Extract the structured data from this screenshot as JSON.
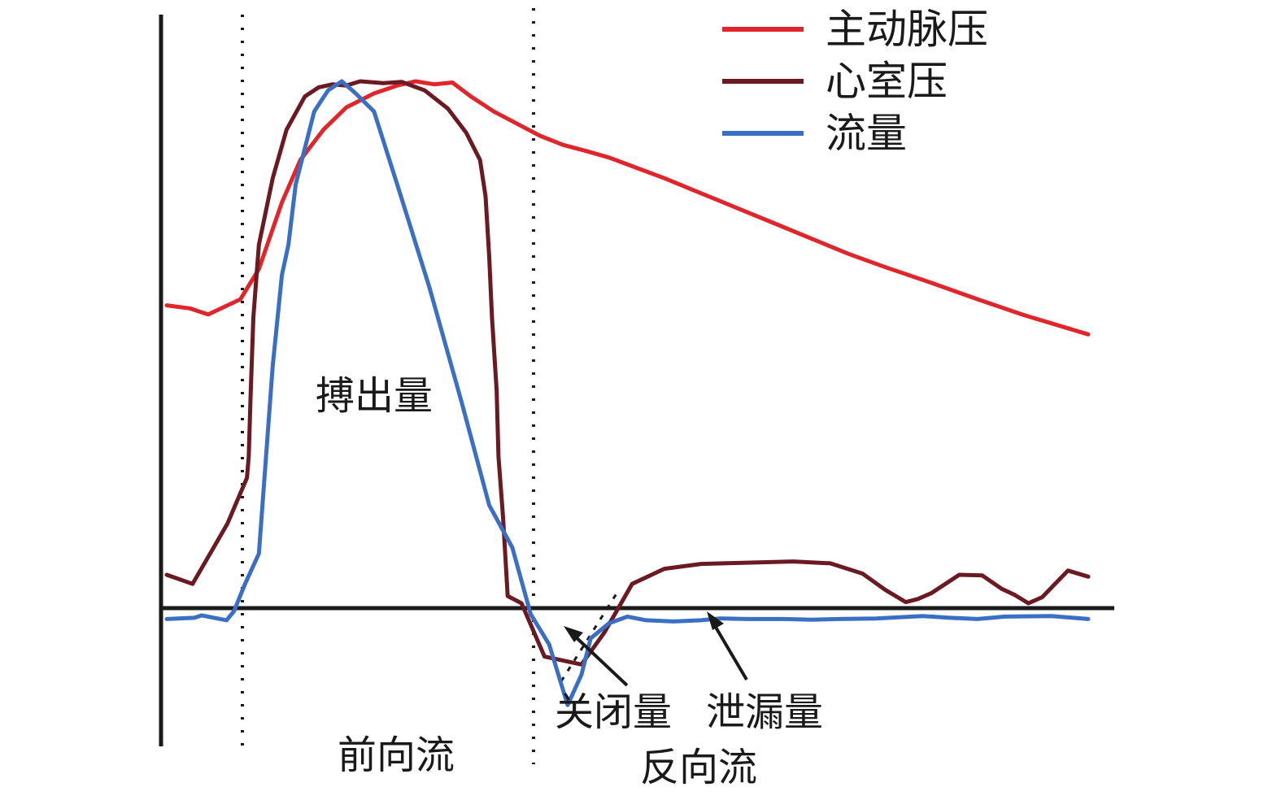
{
  "chart_data": {
    "type": "line",
    "title": "",
    "xlabel": "",
    "ylabel": "",
    "grid": false,
    "legend_position": "top-right",
    "xlim": [
      0,
      100
    ],
    "ylim": [
      -10,
      100
    ],
    "series": [
      {
        "name": "主动脉压",
        "color": "#e0262b",
        "x": [
          0,
          2.5,
          4.5,
          6.3,
          8,
          10,
          12.5,
          14.5,
          17,
          19.5,
          22.5,
          25,
          27,
          29,
          31,
          33,
          35.5,
          38,
          40.5,
          43,
          45.5,
          48,
          51,
          54,
          58,
          62,
          66,
          70,
          74,
          78,
          83,
          88,
          93,
          100
        ],
        "y": [
          50,
          49.5,
          48.5,
          49.8,
          51,
          56,
          67,
          74,
          79,
          82.7,
          85,
          86.3,
          87,
          86.5,
          86.8,
          84.5,
          82,
          80,
          78,
          76.5,
          75.5,
          74.4,
          72.7,
          71,
          68.5,
          66,
          63.5,
          61,
          58.5,
          56.3,
          53.7,
          51,
          48.4,
          45.2
        ]
      },
      {
        "name": "心室压",
        "color": "#6b1a22",
        "x": [
          0,
          2.8,
          4.9,
          6.6,
          8,
          8.7,
          8.9,
          9.1,
          9.4,
          10,
          11.5,
          13,
          15,
          16.5,
          18,
          19.5,
          21,
          23.5,
          25.5,
          28,
          30.5,
          32.5,
          34,
          34.6,
          35,
          35.3,
          35.8,
          36,
          36.5,
          37,
          38.5,
          41,
          45,
          47.5,
          50.5,
          54,
          58,
          63,
          68,
          72,
          75.5,
          78,
          80.2,
          81.5,
          83,
          86,
          88.5,
          90.6,
          92,
          93.5,
          95,
          97.8,
          100
        ],
        "y": [
          5.5,
          4,
          9.5,
          14,
          19,
          21.5,
          25,
          35,
          48,
          60,
          71,
          79,
          84.5,
          86,
          86.5,
          86.3,
          87,
          86.7,
          86.9,
          85.5,
          82.5,
          78.5,
          74,
          68,
          58,
          48,
          36,
          25,
          15,
          2,
          0.8,
          -8,
          -9.3,
          -4,
          4,
          6.5,
          7.3,
          7.5,
          7.7,
          7.4,
          5.7,
          3,
          1,
          1.5,
          2.5,
          5.5,
          5.4,
          3.2,
          2.2,
          0.8,
          1.8,
          6.2,
          5.2
        ]
      },
      {
        "name": "流量",
        "color": "#3a6fc4",
        "x": [
          0,
          3,
          3.8,
          4.8,
          6.5,
          7.3,
          8.5,
          10,
          11.5,
          12.5,
          13.2,
          14,
          16,
          17.5,
          19,
          20.5,
          22.5,
          25,
          28.5,
          32,
          35,
          37.5,
          39.5,
          41.5,
          43.5,
          45,
          46,
          48,
          50,
          52,
          55,
          58,
          60,
          63,
          67,
          70,
          73,
          77,
          82,
          85,
          88,
          91,
          96,
          100
        ],
        "y": [
          -1.8,
          -1.6,
          -1.2,
          -1.5,
          -2,
          -0.5,
          4,
          9,
          40,
          55,
          60,
          70,
          82,
          85.5,
          87,
          85,
          82,
          70,
          53,
          34,
          17,
          10,
          -1,
          -6,
          -16,
          -11,
          -5,
          -2.5,
          -1.4,
          -2,
          -2.2,
          -2,
          -1.7,
          -1.8,
          -1.8,
          -1.9,
          -1.8,
          -1.7,
          -1.3,
          -1.6,
          -1.8,
          -1.4,
          -1.3,
          -1.8
        ]
      }
    ],
    "annotations": {
      "stroke_volume": "搏出量",
      "forward_flow": "前向流",
      "closing_volume": "关闭量",
      "leakage_volume": "泄漏量",
      "reverse_flow": "反向流"
    }
  }
}
